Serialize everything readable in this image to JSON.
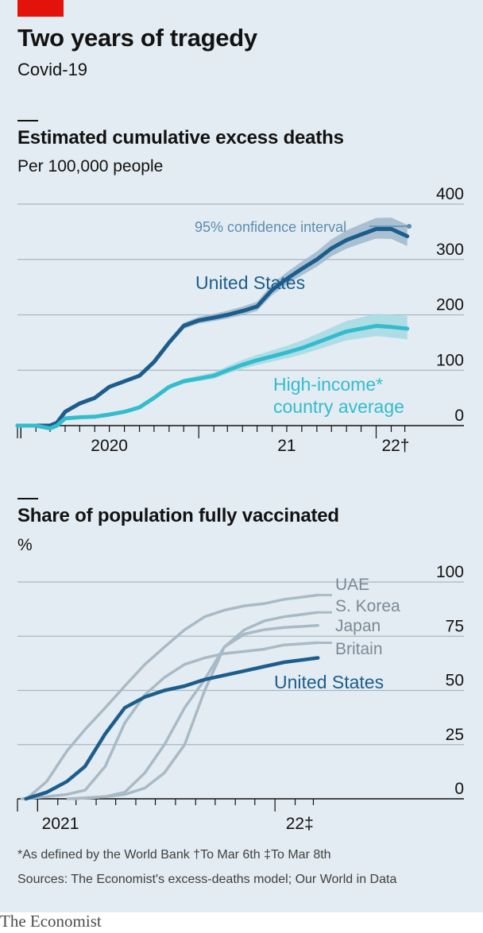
{
  "header": {
    "title": "Two years of tragedy",
    "subtitle": "Covid-19"
  },
  "chart_data": [
    {
      "type": "line",
      "title": "Estimated cumulative excess deaths",
      "subtitle": "Per 100,000 people",
      "ylim": [
        0,
        400
      ],
      "yticks": [
        "400",
        "300",
        "200",
        "100",
        "0"
      ],
      "xticks": [
        "2020",
        "21",
        "22†"
      ],
      "annotation": "95% confidence interval",
      "grid": true,
      "series": [
        {
          "name": "United States",
          "color": "#1c5d8c",
          "points": [
            [
              "2019-12-25",
              0
            ],
            [
              "2020-02-01",
              0
            ],
            [
              "2020-03-01",
              0
            ],
            [
              "2020-03-15",
              5
            ],
            [
              "2020-04-01",
              25
            ],
            [
              "2020-05-01",
              40
            ],
            [
              "2020-06-01",
              50
            ],
            [
              "2020-07-01",
              70
            ],
            [
              "2020-08-01",
              80
            ],
            [
              "2020-09-01",
              90
            ],
            [
              "2020-10-01",
              115
            ],
            [
              "2020-11-01",
              150
            ],
            [
              "2020-12-01",
              180
            ],
            [
              "2021-01-01",
              190
            ],
            [
              "2021-02-01",
              195
            ],
            [
              "2021-03-01",
              200
            ],
            [
              "2021-04-01",
              207
            ],
            [
              "2021-05-01",
              215
            ],
            [
              "2021-06-01",
              245
            ],
            [
              "2021-07-01",
              265
            ],
            [
              "2021-08-01",
              283
            ],
            [
              "2021-09-01",
              300
            ],
            [
              "2021-10-01",
              320
            ],
            [
              "2021-11-01",
              335
            ],
            [
              "2021-12-01",
              345
            ],
            [
              "2022-01-01",
              355
            ],
            [
              "2022-02-01",
              355
            ],
            [
              "2022-03-06",
              342
            ]
          ]
        },
        {
          "name": "High-income* country average",
          "color": "#33bccd",
          "points": [
            [
              "2019-12-25",
              0
            ],
            [
              "2020-02-01",
              0
            ],
            [
              "2020-03-01",
              -5
            ],
            [
              "2020-03-15",
              0
            ],
            [
              "2020-04-01",
              13
            ],
            [
              "2020-05-01",
              15
            ],
            [
              "2020-06-01",
              16
            ],
            [
              "2020-07-01",
              20
            ],
            [
              "2020-08-01",
              25
            ],
            [
              "2020-09-01",
              33
            ],
            [
              "2020-10-01",
              50
            ],
            [
              "2020-11-01",
              70
            ],
            [
              "2020-12-01",
              80
            ],
            [
              "2021-01-01",
              85
            ],
            [
              "2021-02-01",
              90
            ],
            [
              "2021-03-01",
              100
            ],
            [
              "2021-04-01",
              110
            ],
            [
              "2021-05-01",
              118
            ],
            [
              "2021-06-01",
              125
            ],
            [
              "2021-07-01",
              132
            ],
            [
              "2021-08-01",
              140
            ],
            [
              "2021-09-01",
              150
            ],
            [
              "2021-10-01",
              160
            ],
            [
              "2021-11-01",
              170
            ],
            [
              "2021-12-01",
              175
            ],
            [
              "2022-01-01",
              180
            ],
            [
              "2022-02-01",
              178
            ],
            [
              "2022-03-06",
              175
            ]
          ]
        }
      ]
    },
    {
      "type": "line",
      "title": "Share of population fully vaccinated",
      "subtitle": "%",
      "ylim": [
        0,
        100
      ],
      "yticks": [
        "100",
        "75",
        "50",
        "25",
        "0"
      ],
      "xticks": [
        "2021",
        "22‡"
      ],
      "grid": true,
      "series": [
        {
          "name": "UAE",
          "color": "#a9bac6",
          "points": [
            [
              "2020-12-15",
              0
            ],
            [
              "2021-01-15",
              8
            ],
            [
              "2021-02-15",
              22
            ],
            [
              "2021-03-15",
              32
            ],
            [
              "2021-04-15",
              42
            ],
            [
              "2021-05-15",
              52
            ],
            [
              "2021-06-15",
              62
            ],
            [
              "2021-07-15",
              70
            ],
            [
              "2021-08-15",
              78
            ],
            [
              "2021-09-15",
              84
            ],
            [
              "2021-10-15",
              87
            ],
            [
              "2021-11-15",
              89
            ],
            [
              "2021-12-15",
              90
            ],
            [
              "2022-01-15",
              92
            ],
            [
              "2022-03-08",
              94
            ]
          ]
        },
        {
          "name": "S. Korea",
          "color": "#a9bac6",
          "points": [
            [
              "2021-02-25",
              0
            ],
            [
              "2021-04-15",
              1
            ],
            [
              "2021-05-15",
              2
            ],
            [
              "2021-06-15",
              5
            ],
            [
              "2021-07-15",
              12
            ],
            [
              "2021-08-15",
              25
            ],
            [
              "2021-09-15",
              50
            ],
            [
              "2021-10-15",
              70
            ],
            [
              "2021-11-15",
              78
            ],
            [
              "2021-12-15",
              82
            ],
            [
              "2022-01-15",
              84
            ],
            [
              "2022-03-08",
              86
            ]
          ]
        },
        {
          "name": "Japan",
          "color": "#a9bac6",
          "points": [
            [
              "2021-02-17",
              0
            ],
            [
              "2021-04-15",
              1
            ],
            [
              "2021-05-15",
              3
            ],
            [
              "2021-06-15",
              12
            ],
            [
              "2021-07-15",
              25
            ],
            [
              "2021-08-15",
              42
            ],
            [
              "2021-09-15",
              55
            ],
            [
              "2021-10-15",
              70
            ],
            [
              "2021-11-15",
              76
            ],
            [
              "2021-12-15",
              78
            ],
            [
              "2022-01-15",
              79
            ],
            [
              "2022-03-08",
              80
            ]
          ]
        },
        {
          "name": "Britain",
          "color": "#a9bac6",
          "points": [
            [
              "2020-12-08",
              0
            ],
            [
              "2021-01-15",
              1
            ],
            [
              "2021-02-15",
              2
            ],
            [
              "2021-03-15",
              4
            ],
            [
              "2021-04-15",
              15
            ],
            [
              "2021-05-15",
              35
            ],
            [
              "2021-06-15",
              48
            ],
            [
              "2021-07-15",
              56
            ],
            [
              "2021-08-15",
              62
            ],
            [
              "2021-09-15",
              65
            ],
            [
              "2021-10-15",
              67
            ],
            [
              "2021-11-15",
              68
            ],
            [
              "2021-12-15",
              69
            ],
            [
              "2022-01-15",
              71
            ],
            [
              "2022-03-08",
              72
            ]
          ]
        },
        {
          "name": "United States",
          "color": "#1c5d8c",
          "points": [
            [
              "2020-12-14",
              0
            ],
            [
              "2021-01-15",
              3
            ],
            [
              "2021-02-15",
              8
            ],
            [
              "2021-03-15",
              15
            ],
            [
              "2021-04-15",
              30
            ],
            [
              "2021-05-15",
              42
            ],
            [
              "2021-06-15",
              47
            ],
            [
              "2021-07-15",
              50
            ],
            [
              "2021-08-15",
              52
            ],
            [
              "2021-09-15",
              55
            ],
            [
              "2021-10-15",
              57
            ],
            [
              "2021-11-15",
              59
            ],
            [
              "2021-12-15",
              61
            ],
            [
              "2022-01-15",
              63
            ],
            [
              "2022-03-08",
              65
            ]
          ]
        }
      ]
    }
  ],
  "footnotes": {
    "line1": "*As defined by the World Bank   †To Mar 6th   ‡To Mar 8th",
    "line2": "Sources: The Economist's excess-deaths model; Our World in Data"
  },
  "brand": "The Economist"
}
